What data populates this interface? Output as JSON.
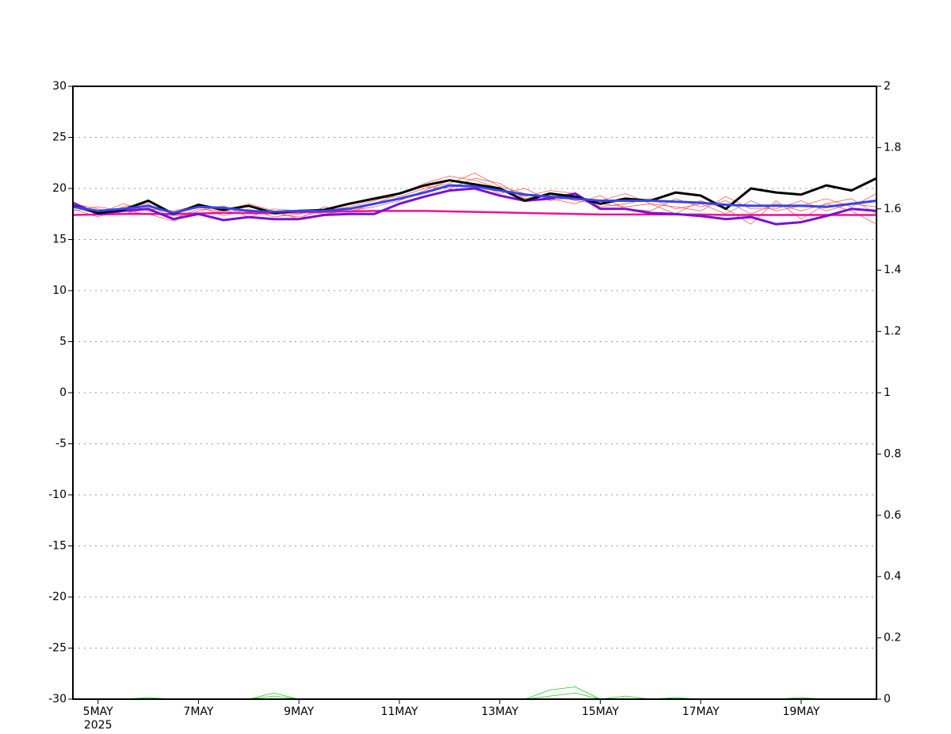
{
  "chart_data": {
    "type": "line",
    "categories": [
      null,
      "5MAY",
      null,
      null,
      null,
      "7MAY",
      null,
      null,
      null,
      "9MAY",
      null,
      null,
      null,
      "11MAY",
      null,
      null,
      null,
      "13MAY",
      null,
      null,
      null,
      "15MAY",
      null,
      null,
      null,
      "17MAY",
      null,
      null,
      null,
      "19MAY",
      null,
      null,
      null
    ],
    "year_label": "2025",
    "ylim": [
      -30,
      30
    ],
    "yticks": [
      -30,
      -25,
      -20,
      -15,
      -10,
      -5,
      0,
      5,
      10,
      15,
      20,
      25,
      30
    ],
    "y2lim": [
      0,
      2
    ],
    "y2ticks": [
      0,
      0.2,
      0.4,
      0.6,
      0.8,
      1,
      1.2,
      1.4,
      1.6,
      1.8,
      2
    ],
    "grid": true,
    "series": [
      {
        "color": "#ff4a3a",
        "width": 0.7,
        "values": [
          18.0,
          17.2,
          18.2,
          18.5,
          17.0,
          18.0,
          17.8,
          17.5,
          17.5,
          17.2,
          17.8,
          18.2,
          18.8,
          19.5,
          20.5,
          21.2,
          20.8,
          20.0,
          19.2,
          19.8,
          19.5,
          18.2,
          18.5,
          19.0,
          18.0,
          18.5,
          17.5,
          18.8,
          17.8,
          18.3,
          19.0,
          18.2,
          19.5
        ]
      },
      {
        "color": "#ff4a3a",
        "width": 0.7,
        "values": [
          18.5,
          18.0,
          17.5,
          18.0,
          17.8,
          18.3,
          17.3,
          18.0,
          17.2,
          17.5,
          18.0,
          18.5,
          19.0,
          19.2,
          20.0,
          20.5,
          21.5,
          20.2,
          19.5,
          19.0,
          18.5,
          19.3,
          18.0,
          17.8,
          19.0,
          18.2,
          18.8,
          17.5,
          18.5,
          17.8,
          18.5,
          19.0,
          17.5
        ]
      },
      {
        "color": "#ff4a3a",
        "width": 0.7,
        "values": [
          17.8,
          18.2,
          17.8,
          17.5,
          16.8,
          17.8,
          18.3,
          17.2,
          18.0,
          17.8,
          17.5,
          17.8,
          18.2,
          18.8,
          19.8,
          20.8,
          20.5,
          19.5,
          20.0,
          18.8,
          19.2,
          18.8,
          19.5,
          18.5,
          18.2,
          17.8,
          19.2,
          18.0,
          18.0,
          18.8,
          17.8,
          18.5,
          18.2
        ]
      },
      {
        "color": "#ff4a3a",
        "width": 0.7,
        "values": [
          18.2,
          17.5,
          18.5,
          17.8,
          17.3,
          17.5,
          17.8,
          18.5,
          17.8,
          17.0,
          18.2,
          17.7,
          18.5,
          19.5,
          20.2,
          20.0,
          21.0,
          20.5,
          19.0,
          19.5,
          18.8,
          18.5,
          18.2,
          18.5,
          17.5,
          18.8,
          18.0,
          16.5,
          18.8,
          17.0,
          18.5,
          17.8,
          16.5
        ]
      },
      {
        "color": "#22cc22",
        "width": 0.8,
        "axis": "y2",
        "values": [
          0,
          0,
          0,
          0.005,
          0,
          0,
          0,
          0,
          0.02,
          0,
          0,
          0,
          0,
          0,
          0,
          0,
          0,
          0,
          0,
          0.03,
          0.04,
          0,
          0.01,
          0,
          0,
          0,
          0,
          0,
          0,
          0,
          0,
          0,
          0
        ]
      },
      {
        "color": "#22cc22",
        "width": 0.8,
        "axis": "y2",
        "values": [
          0,
          0,
          0,
          0,
          0,
          0,
          0,
          0,
          0.01,
          0,
          0,
          0,
          0,
          0,
          0,
          0,
          0,
          0,
          0,
          0.01,
          0.02,
          0,
          0,
          0,
          0.005,
          0,
          0,
          0,
          0,
          0.005,
          0,
          0,
          0
        ]
      },
      {
        "color": "#ee1199",
        "width": 2.5,
        "values": [
          17.4,
          17.45,
          17.5,
          17.5,
          17.5,
          17.55,
          17.6,
          17.6,
          17.6,
          17.65,
          17.7,
          17.75,
          17.8,
          17.8,
          17.8,
          17.75,
          17.7,
          17.65,
          17.6,
          17.55,
          17.5,
          17.45,
          17.45,
          17.45,
          17.45,
          17.45,
          17.4,
          17.4,
          17.4,
          17.4,
          17.4,
          17.4,
          17.4
        ]
      },
      {
        "color": "#7a10d8",
        "width": 3,
        "values": [
          18.6,
          17.5,
          17.8,
          18.0,
          17.0,
          17.5,
          16.9,
          17.2,
          17.0,
          17.0,
          17.4,
          17.5,
          17.5,
          18.5,
          19.2,
          19.8,
          20.0,
          19.3,
          18.8,
          19.0,
          19.5,
          18.0,
          18.0,
          17.6,
          17.5,
          17.3,
          17.0,
          17.2,
          16.5,
          16.7,
          17.3,
          18.0,
          17.8
        ]
      },
      {
        "color": "#000000",
        "width": 3,
        "values": [
          18.3,
          17.6,
          17.9,
          18.8,
          17.5,
          18.4,
          17.9,
          18.3,
          17.6,
          17.8,
          17.9,
          18.5,
          19.0,
          19.5,
          20.3,
          20.8,
          20.4,
          20.0,
          18.8,
          19.5,
          19.2,
          18.5,
          19.0,
          18.8,
          19.6,
          19.3,
          18.0,
          20.0,
          19.6,
          19.4,
          20.3,
          19.8,
          21.0
        ]
      },
      {
        "color": "#3344ee",
        "width": 3,
        "values": [
          18.2,
          17.8,
          18.0,
          18.3,
          17.6,
          18.2,
          18.1,
          17.8,
          17.7,
          17.8,
          17.8,
          18.0,
          18.5,
          19.0,
          19.6,
          20.3,
          20.2,
          19.8,
          19.4,
          19.2,
          19.0,
          18.8,
          18.8,
          18.8,
          18.7,
          18.6,
          18.4,
          18.3,
          18.3,
          18.3,
          18.2,
          18.5,
          18.8
        ]
      }
    ]
  }
}
